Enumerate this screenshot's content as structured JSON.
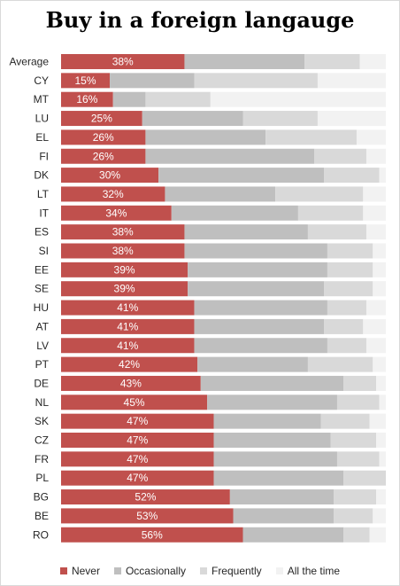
{
  "chart_data": {
    "type": "bar",
    "orientation": "horizontal",
    "stacked": true,
    "title": "Buy in a foreign langauge",
    "categories": [
      "Average",
      "CY",
      "MT",
      "LU",
      "EL",
      "FI",
      "DK",
      "LT",
      "IT",
      "ES",
      "SI",
      "EE",
      "SE",
      "HU",
      "AT",
      "LV",
      "PT",
      "DE",
      "NL",
      "SK",
      "CZ",
      "FR",
      "PL",
      "BG",
      "BE",
      "RO"
    ],
    "series": [
      {
        "name": "Never",
        "color": "#c0504d",
        "values": [
          38,
          15,
          16,
          25,
          26,
          26,
          30,
          32,
          34,
          38,
          38,
          39,
          39,
          41,
          41,
          41,
          42,
          43,
          45,
          47,
          47,
          47,
          47,
          52,
          53,
          56
        ]
      },
      {
        "name": "Occasionally",
        "color": "#bfbfbf",
        "values": [
          37,
          26,
          10,
          31,
          37,
          52,
          51,
          34,
          39,
          38,
          44,
          43,
          42,
          41,
          40,
          41,
          34,
          44,
          40,
          33,
          36,
          38,
          40,
          32,
          31,
          31
        ]
      },
      {
        "name": "Frequently",
        "color": "#d9d9d9",
        "values": [
          17,
          38,
          20,
          23,
          28,
          16,
          17,
          27,
          20,
          18,
          14,
          14,
          15,
          12,
          12,
          12,
          20,
          10,
          13,
          15,
          14,
          13,
          13,
          13,
          12,
          8
        ]
      },
      {
        "name": "All the time",
        "color": "#f2f2f2",
        "values": [
          8,
          21,
          54,
          21,
          9,
          6,
          2,
          7,
          7,
          6,
          4,
          4,
          4,
          6,
          7,
          6,
          4,
          3,
          2,
          5,
          3,
          2,
          0,
          3,
          4,
          5
        ]
      }
    ],
    "data_labels": [
      "38%",
      "15%",
      "16%",
      "25%",
      "26%",
      "26%",
      "30%",
      "32%",
      "34%",
      "38%",
      "38%",
      "39%",
      "39%",
      "41%",
      "41%",
      "41%",
      "42%",
      "43%",
      "45%",
      "47%",
      "47%",
      "47%",
      "47%",
      "52%",
      "53%",
      "56%"
    ],
    "xlim": [
      0,
      100
    ],
    "legend_position": "bottom",
    "grid": false
  }
}
